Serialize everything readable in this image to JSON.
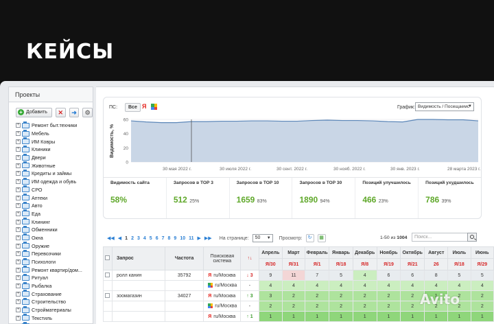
{
  "hero_title": "КЕЙСЫ",
  "sidebar": {
    "title": "Проекты",
    "add_label": "Добавить",
    "items": [
      "Ремонт быт.техники",
      "Мебель",
      "ИМ Ковры",
      "Клиники",
      "Двери",
      "Животные",
      "Кредиты и займы",
      "ИМ одежда и обувь",
      "СРО",
      "Аптеки",
      "Авто",
      "Еда",
      "Клининг",
      "Обменники",
      "Окна",
      "Оружие",
      "Перевозчики",
      "Психологи",
      "Ремонт квартир/дом...",
      "Ритуал",
      "Рыбалка",
      "Страхование",
      "Строительство",
      "Стройматериалы",
      "Текстиль",
      "Цветы"
    ]
  },
  "filters": {
    "ps_label": "ПС:",
    "all_label": "Все",
    "yandex_glyph": "Я",
    "graph_label": "График:",
    "graph_value": "Видимость / Посещаемс"
  },
  "chart_data": {
    "type": "line",
    "ylabel": "Видимость, %",
    "ylim": [
      0,
      60
    ],
    "yticks": [
      "60",
      "40",
      "20",
      "0"
    ],
    "xticks": [
      "30 мая 2022 г.",
      "30 июля 2022 г.",
      "30 сент. 2022 г.",
      "30 нояб. 2022 г.",
      "30 янв. 2023 г.",
      "28 марта 2023 г."
    ],
    "series": [
      {
        "name": "",
        "values": [
          58,
          56.5,
          55.5,
          55.5,
          57,
          57,
          57.5,
          57.5,
          58,
          58,
          57.5,
          57.5,
          58.5,
          59,
          58.5,
          58.5,
          58,
          57,
          56.5,
          60,
          60,
          59.5,
          59.5,
          58
        ]
      }
    ],
    "colors": {
      "line": "#5b86b8",
      "fill": "#c9d6e6"
    }
  },
  "metrics": [
    {
      "label": "Видимость сайта",
      "value": "58%",
      "pct": ""
    },
    {
      "label": "Запросов в ТОР 3",
      "value": "512",
      "pct": "25%"
    },
    {
      "label": "Запросов в ТОР 10",
      "value": "1659",
      "pct": "83%"
    },
    {
      "label": "Запросов в ТОР 30",
      "value": "1890",
      "pct": "94%"
    },
    {
      "label": "Позиций улучшилось",
      "value": "466",
      "pct": "23%"
    },
    {
      "label": "Позиций ухудшилось",
      "value": "786",
      "pct": "39%"
    }
  ],
  "pager": {
    "pages": [
      "1",
      "2",
      "3",
      "4",
      "5",
      "6",
      "7",
      "8",
      "9",
      "10",
      "11"
    ],
    "per_page_label": "На странице:",
    "per_page_value": "50",
    "view_label": "Просмотр:",
    "range_text": "1-50 из",
    "total": "1004",
    "search_placeholder": "Поиск..."
  },
  "table": {
    "headers": {
      "query": "Запрос",
      "freq": "Частота",
      "engine": "Поисковая система",
      "delta": "↑↓"
    },
    "months": [
      "Апрель",
      "Март",
      "Февраль",
      "Январь",
      "Декабрь",
      "Ноябрь",
      "Октябрь",
      "Август",
      "Июль",
      "Июнь"
    ],
    "month_sub": [
      "Я/30",
      "Я/31",
      "Я/1",
      "Я/18",
      "Я/8",
      "Я/19",
      "Я/21",
      "26",
      "Я/18",
      "Я/29"
    ],
    "rows": [
      {
        "query": "ролл канин",
        "freq": "35792",
        "engine": "ru/Москва",
        "delta": "↓ 3",
        "cells": [
          "9",
          "11",
          "7",
          "5",
          "4",
          "6",
          "6",
          "8",
          "5",
          "5"
        ]
      },
      {
        "query": "",
        "freq": "",
        "engine": "ru/Москва",
        "delta": "-",
        "cells": [
          "4",
          "4",
          "4",
          "4",
          "4",
          "4",
          "4",
          "4",
          "4",
          "4"
        ]
      },
      {
        "query": "зоомагазин",
        "freq": "34027",
        "engine": "ru/Москва",
        "delta": "↑ 3",
        "cells": [
          "3",
          "2",
          "2",
          "2",
          "2",
          "2",
          "2",
          "1",
          "2",
          "2"
        ]
      },
      {
        "query": "",
        "freq": "",
        "engine": "ru/Москва",
        "delta": "-",
        "cells": [
          "2",
          "2",
          "2",
          "2",
          "2",
          "2",
          "2",
          "2",
          "2",
          "2"
        ]
      },
      {
        "query": "",
        "freq": "",
        "engine": "ru/Москва",
        "delta": "↑ 1",
        "cells": [
          "1",
          "1",
          "1",
          "1",
          "1",
          "1",
          "1",
          "1",
          "1",
          "1"
        ]
      }
    ]
  },
  "watermark": "Avito"
}
